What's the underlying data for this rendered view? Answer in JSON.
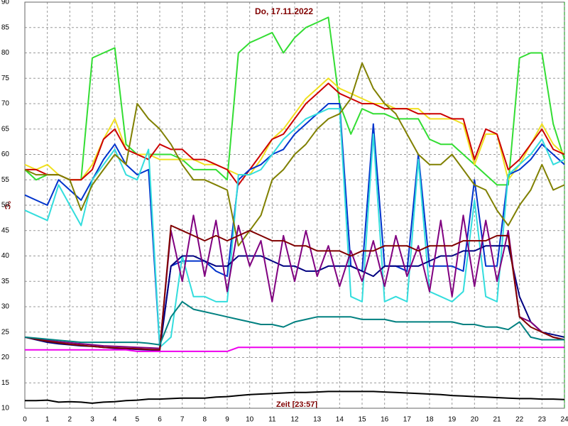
{
  "chart_data": {
    "type": "line",
    "title": "Do, 17.11.2022",
    "y_label": "°C",
    "x_label": "Zeit [23:57]",
    "x": [
      0,
      0.5,
      1,
      1.5,
      2,
      2.5,
      3,
      3.5,
      4,
      4.5,
      5,
      5.5,
      6,
      6.5,
      7,
      7.5,
      8,
      8.5,
      9,
      9.5,
      10,
      10.5,
      11,
      11.5,
      12,
      12.5,
      13,
      13.5,
      14,
      14.5,
      15,
      15.5,
      16,
      16.5,
      17,
      17.5,
      18,
      18.5,
      19,
      19.5,
      20,
      20.5,
      21,
      21.5,
      22,
      22.5,
      23,
      23.5,
      24
    ],
    "xlim": [
      0,
      24
    ],
    "xticks": [
      0,
      1,
      2,
      3,
      4,
      5,
      6,
      7,
      8,
      9,
      10,
      11,
      12,
      13,
      14,
      15,
      16,
      17,
      18,
      19,
      20,
      21,
      22,
      23,
      24
    ],
    "ylim": [
      10,
      90
    ],
    "yticks": [
      10,
      15,
      20,
      25,
      30,
      35,
      40,
      45,
      50,
      55,
      60,
      65,
      70,
      75,
      80,
      85,
      90
    ],
    "grid": true,
    "series": [
      {
        "color": "#33dd33",
        "values": [
          57,
          55,
          56,
          56,
          55,
          55,
          79,
          80,
          81,
          62,
          60,
          60,
          60,
          60,
          59,
          57,
          57,
          57,
          55,
          80,
          82,
          83,
          84,
          80,
          83,
          85,
          86,
          87,
          70,
          64,
          69,
          68,
          68,
          67,
          67,
          67,
          63,
          62,
          62,
          60,
          58,
          56,
          54,
          54,
          79,
          80,
          80,
          66,
          59
        ]
      },
      {
        "color": "#f0e020",
        "values": [
          58,
          57,
          58,
          56,
          55,
          55,
          58,
          63,
          67,
          61,
          60,
          60,
          59,
          59,
          59,
          59,
          58,
          58,
          57,
          56,
          56,
          59,
          63,
          65,
          68,
          71,
          73,
          75,
          73,
          72,
          71,
          70,
          70,
          69,
          69,
          69,
          67,
          67,
          67,
          66,
          58,
          64,
          64,
          55,
          58,
          62,
          66,
          62,
          60
        ]
      },
      {
        "color": "#cc0000",
        "values": [
          57,
          57,
          56,
          56,
          55,
          55,
          57,
          63,
          65,
          61,
          60,
          59,
          62,
          61,
          61,
          59,
          59,
          58,
          57,
          54,
          57,
          60,
          63,
          64,
          67,
          70,
          72,
          74,
          72,
          71,
          70,
          70,
          69,
          69,
          69,
          68,
          68,
          68,
          67,
          67,
          59,
          65,
          64,
          57,
          59,
          62,
          65,
          61,
          60
        ]
      },
      {
        "color": "#0033cc",
        "values": [
          52,
          51,
          50,
          55,
          53,
          51,
          55,
          59,
          62,
          58,
          56,
          57,
          22,
          38,
          39,
          39,
          39,
          37,
          36,
          55,
          57,
          58,
          60,
          61,
          64,
          66,
          68,
          70,
          70,
          38,
          37,
          66,
          38,
          38,
          37,
          60,
          38,
          38,
          38,
          37,
          55,
          38,
          38,
          56,
          57,
          59,
          62,
          60,
          58
        ]
      },
      {
        "color": "#33dddd",
        "values": [
          49,
          48,
          47,
          54,
          50,
          46,
          55,
          58,
          61,
          56,
          55,
          61,
          22,
          24,
          40,
          32,
          32,
          31,
          31,
          56,
          56,
          57,
          60,
          63,
          65,
          67,
          68,
          69,
          69,
          32,
          31,
          64,
          31,
          32,
          31,
          59,
          33,
          32,
          31,
          33,
          51,
          32,
          31,
          56,
          58,
          60,
          63,
          58,
          59
        ]
      },
      {
        "color": "#808000",
        "values": [
          57,
          56,
          56,
          56,
          55,
          49,
          54,
          57,
          60,
          58,
          70,
          67,
          65,
          62,
          58,
          55,
          55,
          54,
          53,
          42,
          45,
          48,
          55,
          57,
          60,
          62,
          65,
          67,
          68,
          71,
          78,
          73,
          70,
          68,
          64,
          60,
          58,
          58,
          60,
          57,
          54,
          53,
          49,
          46,
          50,
          53,
          58,
          53,
          54
        ]
      },
      {
        "color": "#000080",
        "values": [
          24,
          23.5,
          23,
          22.7,
          22.5,
          22.3,
          22.2,
          22,
          21.8,
          21.7,
          21.6,
          21.5,
          21.4,
          38,
          40,
          40,
          39,
          38,
          38,
          40,
          40,
          40,
          39,
          38,
          38,
          37,
          37,
          38,
          38,
          38,
          37,
          36,
          38,
          38,
          38,
          38,
          39,
          40,
          40,
          41,
          41,
          42,
          42,
          42,
          32,
          27,
          25,
          24.5,
          24
        ]
      },
      {
        "color": "#800080",
        "values": [
          24,
          23.7,
          23.4,
          23.1,
          22.9,
          22.7,
          22.5,
          22.3,
          22.2,
          22.1,
          22,
          21.9,
          21.8,
          45,
          35,
          48,
          36,
          47,
          33,
          46,
          38,
          43,
          31,
          44,
          35,
          45,
          36,
          42,
          34,
          41,
          35,
          43,
          34,
          44,
          36,
          42,
          33,
          47,
          32,
          48,
          34,
          47,
          35,
          45,
          28,
          27,
          25,
          24,
          23.5
        ]
      },
      {
        "color": "#800000",
        "values": [
          24,
          23.6,
          23.2,
          22.9,
          22.6,
          22.4,
          22.2,
          22,
          21.9,
          21.8,
          21.7,
          21.6,
          21.5,
          46,
          45,
          44,
          43,
          44,
          43,
          44,
          45,
          44,
          43,
          43,
          42,
          42,
          41,
          41,
          41,
          40,
          41,
          41,
          42,
          42,
          42,
          41,
          42,
          42,
          42,
          43,
          43,
          43,
          44,
          44,
          28,
          26,
          25,
          24,
          23.5
        ]
      },
      {
        "color": "#008080",
        "values": [
          24,
          23.8,
          23.6,
          23.4,
          23.2,
          23,
          23,
          23,
          23,
          23,
          23,
          22.8,
          22.5,
          28,
          31,
          29.5,
          29,
          28.5,
          28,
          27.5,
          27,
          26.5,
          26.5,
          26,
          27,
          27.5,
          28,
          28,
          28,
          28,
          27.5,
          27.5,
          27.5,
          27,
          27,
          27,
          27,
          27,
          27,
          26.5,
          26.5,
          26,
          26,
          25.5,
          27,
          24,
          23.5,
          23.5,
          23.5
        ]
      },
      {
        "color": "#ee00ee",
        "values": [
          21.5,
          21.5,
          21.5,
          21.5,
          21.5,
          21.5,
          21.5,
          21.5,
          21.5,
          21.5,
          21.2,
          21.2,
          21.2,
          21.2,
          21.2,
          21.2,
          21.2,
          21.2,
          21.2,
          22,
          22,
          22,
          22,
          22,
          22,
          22,
          22,
          22,
          22,
          22,
          22,
          22,
          22,
          22,
          22,
          22,
          22,
          22,
          22,
          22,
          22,
          22,
          22,
          22,
          22,
          22,
          22,
          22,
          22
        ]
      },
      {
        "color": "#000000",
        "values": [
          11.5,
          11.5,
          11.6,
          11.2,
          11.3,
          11.2,
          11,
          11.2,
          11.3,
          11.5,
          11.6,
          11.8,
          11.8,
          11.9,
          12,
          12,
          12,
          12.2,
          12.3,
          12.5,
          12.7,
          12.8,
          12.9,
          13,
          13.1,
          13.1,
          13.2,
          13.3,
          13.3,
          13.3,
          13.3,
          13.3,
          13.2,
          13.1,
          13,
          12.9,
          12.8,
          12.7,
          12.5,
          12.4,
          12.3,
          12.2,
          12.1,
          12,
          11.9,
          11.9,
          11.8,
          11.8,
          11.7
        ]
      }
    ]
  }
}
